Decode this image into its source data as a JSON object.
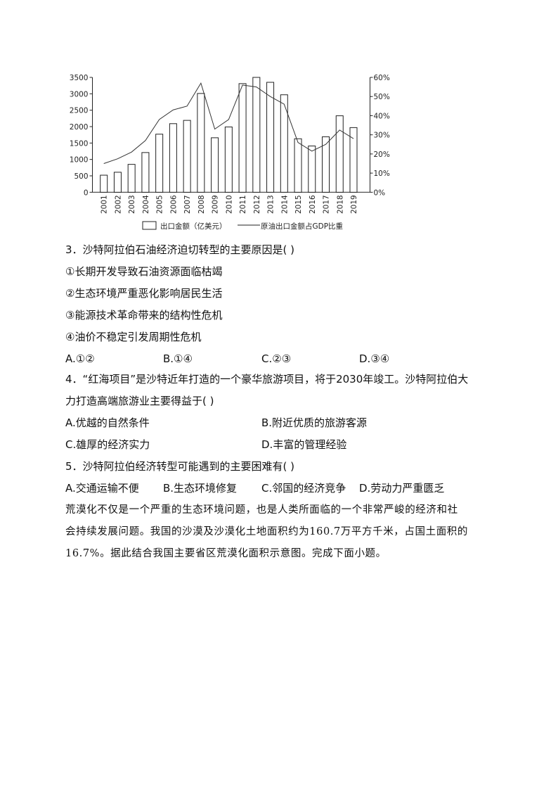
{
  "chart_data": {
    "type": "bar+line",
    "categories": [
      "2001",
      "2002",
      "2003",
      "2004",
      "2005",
      "2006",
      "2007",
      "2008",
      "2009",
      "2010",
      "2011",
      "2012",
      "2013",
      "2014",
      "2015",
      "2016",
      "2017",
      "2018",
      "2019"
    ],
    "series": [
      {
        "name": "出口金额（亿美元）",
        "type": "bar",
        "axis": "left",
        "values": [
          520,
          610,
          850,
          1210,
          1770,
          2090,
          2190,
          3010,
          1660,
          1990,
          3310,
          3500,
          3350,
          2970,
          1630,
          1410,
          1690,
          2330,
          1970
        ]
      },
      {
        "name": "原油出口金额占GDP比重",
        "type": "line",
        "axis": "right",
        "values": [
          15,
          17.5,
          21,
          27,
          38,
          43,
          45,
          57,
          33,
          38,
          56,
          55,
          50,
          46,
          26,
          21.5,
          25,
          32.5,
          28
        ]
      }
    ],
    "left_axis": {
      "ylim": [
        0,
        3500
      ],
      "ticks": [
        "0",
        "500",
        "1000",
        "1500",
        "2000",
        "2500",
        "3000",
        "3500"
      ]
    },
    "right_axis": {
      "ylim": [
        0,
        60
      ],
      "ticks": [
        "0%",
        "10%",
        "20%",
        "30%",
        "40%",
        "50%",
        "60%"
      ]
    },
    "grid": false,
    "legend_position": "bottom",
    "colors": {
      "bar_fill": "#ffffff",
      "bar_stroke": "#222222",
      "line": "#333333"
    }
  },
  "questions": {
    "q3": {
      "stem": "3．沙特阿拉伯石油经济迫切转型的主要原因是(    )",
      "statements": [
        "①长期开发导致石油资源面临枯竭",
        "②生态环境严重恶化影响居民生活",
        "③能源技术革命带来的结构性危机",
        "④油价不稳定引发周期性危机"
      ],
      "options": [
        "A.①②",
        "B.①④",
        "C.②③",
        "D.③④"
      ]
    },
    "q4": {
      "stem_line1": "4．“红海项目”是沙特近年打造的一个豪华旅游项目，将于2030年竣工。沙特阿拉伯大",
      "stem_line2": "力打造高端旅游业主要得益于(    )",
      "options": [
        "A.优越的自然条件",
        "B.附近优质的旅游客源",
        "C.雄厚的经济实力",
        "D.丰富的管理经验"
      ]
    },
    "q5": {
      "stem": "5．沙特阿拉伯经济转型可能遇到的主要困难有(    )",
      "options": [
        "A.交通运输不便",
        "B.生态环境修复",
        "C.邻国的经济竞争",
        "D.劳动力严重匮乏"
      ]
    },
    "passage": [
      "荒漠化不仅是一个严重的生态环境问题，也是人类所面临的一个非常严峻的经济和社",
      "会持续发展问题。我国的沙漠及沙漠化土地面积约为160.7万平方千米，占国土面积的",
      "16.7%。据此结合我国主要省区荒漠化面积示意图。完成下面小题。"
    ]
  }
}
